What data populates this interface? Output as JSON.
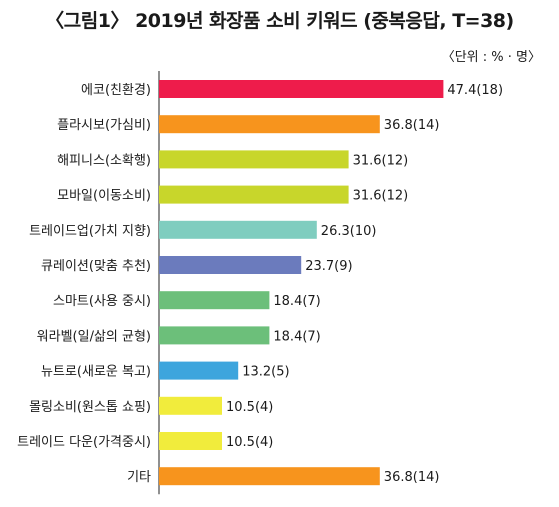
{
  "header": {
    "title": "〈그림1〉 2019년 화장품 소비 키워드 (중복응답, T=38)",
    "unit": "〈단위 : % · 명〉"
  },
  "chart_data": {
    "type": "bar",
    "orientation": "horizontal",
    "title": "〈그림1〉 2019년 화장품 소비 키워드 (중복응답, T=38)",
    "unit_note": "〈단위 : % · 명〉",
    "xlim": [
      0,
      50
    ],
    "grid": false,
    "categories": [
      "에코(친환경)",
      "플라시보(가심비)",
      "해피니스(소확행)",
      "모바일(이동소비)",
      "트레이드업(가치 지향)",
      "큐레이션(맞춤 추천)",
      "스마트(사용 중시)",
      "워라벨(일/삶의 균형)",
      "뉴트로(새로운 복고)",
      "몰링소비(원스톱 쇼핑)",
      "트레이드 다운(가격중시)",
      "기타"
    ],
    "values": [
      47.4,
      36.8,
      31.6,
      31.6,
      26.3,
      23.7,
      18.4,
      18.4,
      13.2,
      10.5,
      10.5,
      36.8
    ],
    "counts": [
      18,
      14,
      12,
      12,
      10,
      9,
      7,
      7,
      5,
      4,
      4,
      14
    ],
    "value_labels": [
      "47.4(18)",
      "36.8(14)",
      "31.6(12)",
      "31.6(12)",
      "26.3(10)",
      "23.7(9)",
      "18.4(7)",
      "18.4(7)",
      "13.2(5)",
      "10.5(4)",
      "10.5(4)",
      "36.8(14)"
    ],
    "colors": [
      "#ee1c4b",
      "#f7941d",
      "#c8d62b",
      "#c8d62b",
      "#7fcdbf",
      "#6b7bbd",
      "#6cbf7a",
      "#6cbf7a",
      "#3da5dd",
      "#f1ec3c",
      "#f1ec3c",
      "#f7941d"
    ]
  }
}
